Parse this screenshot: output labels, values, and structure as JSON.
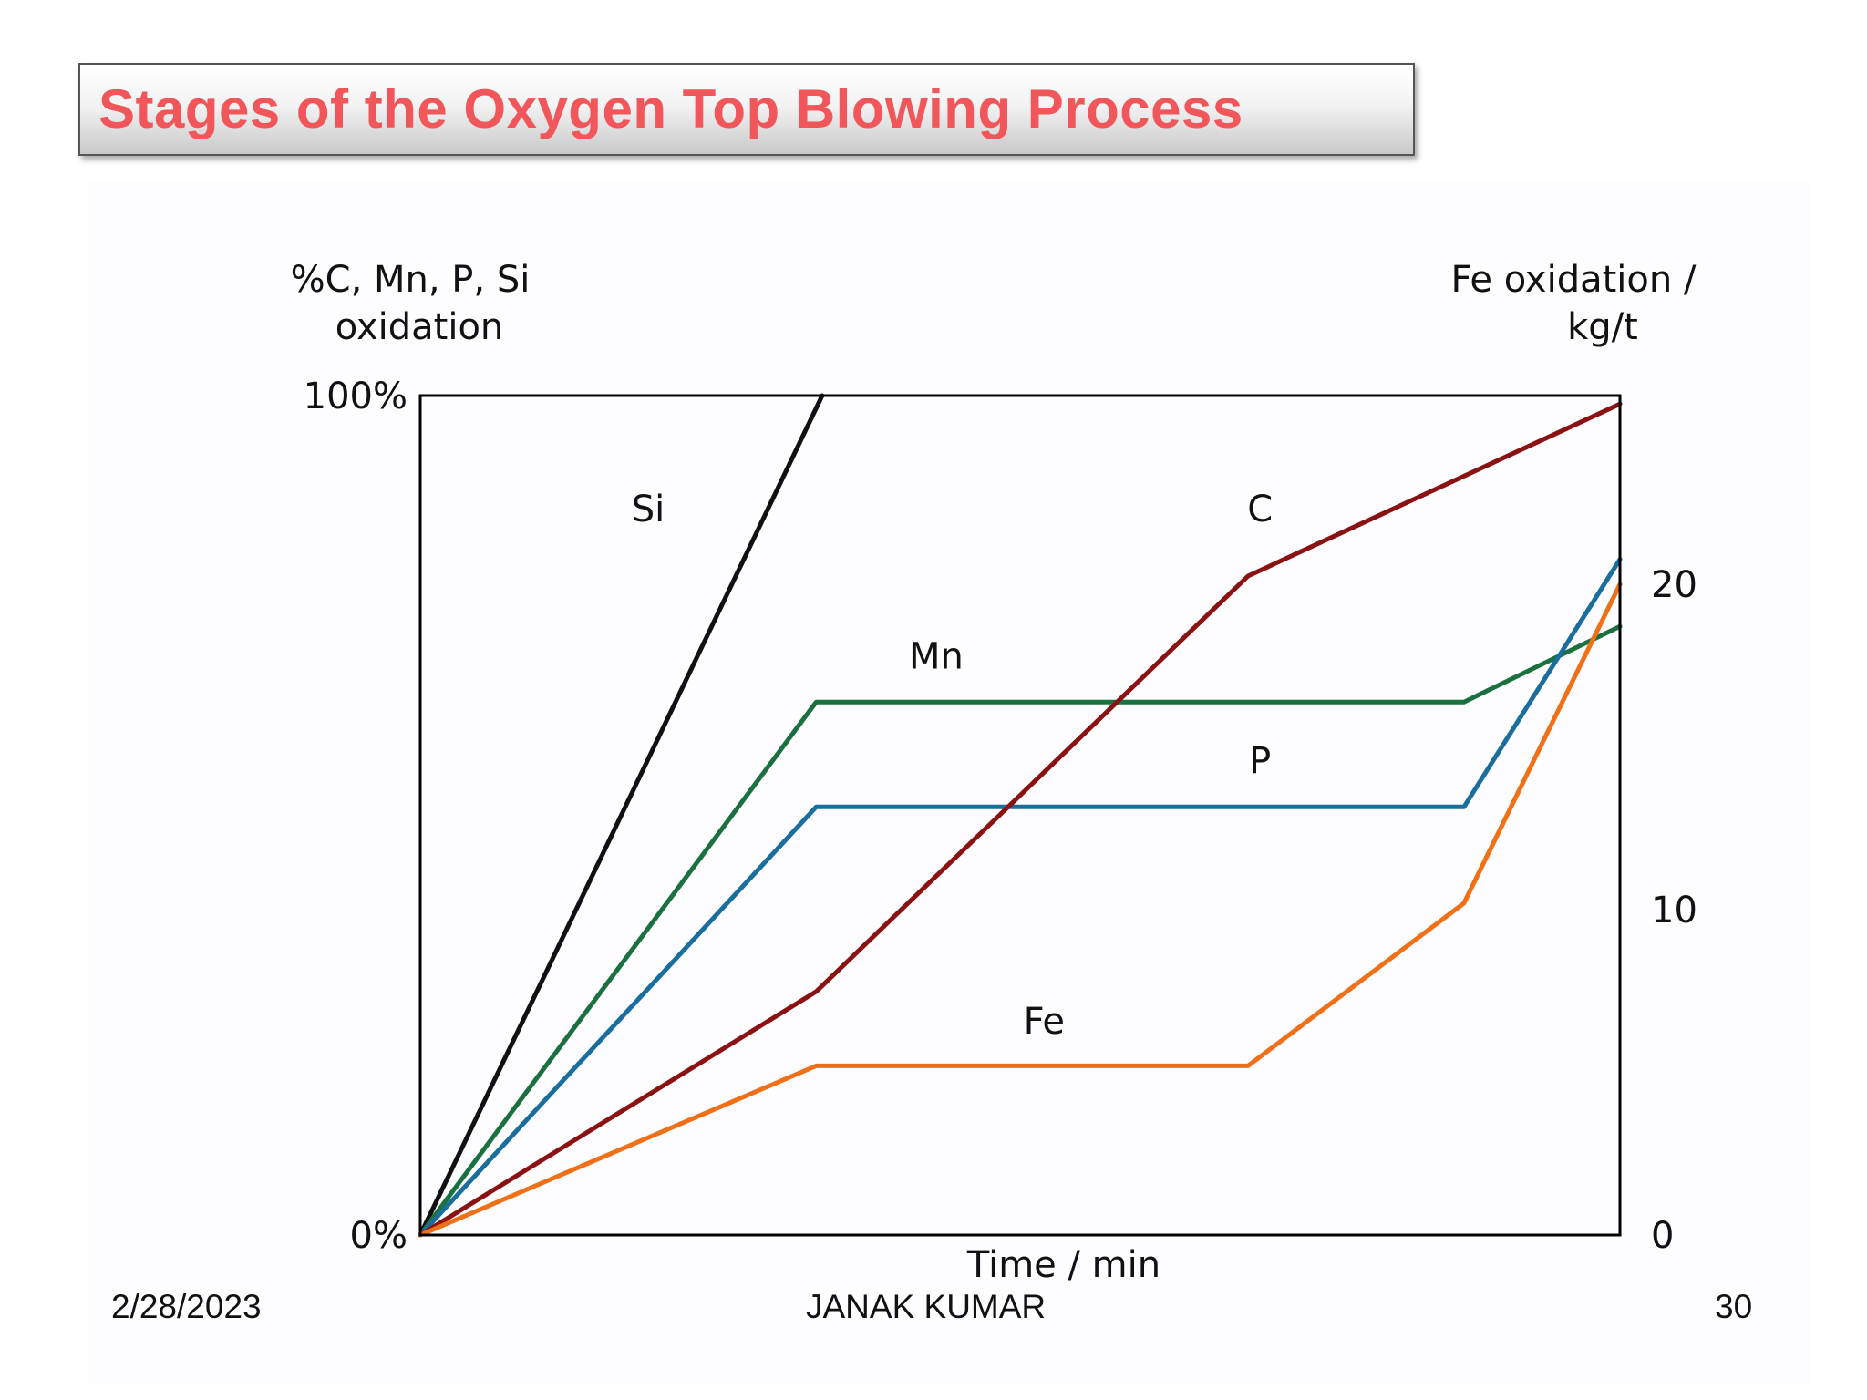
{
  "slide": {
    "title": "Stages of the Oxygen Top Blowing Process",
    "footer": {
      "date": "2/28/2023",
      "author": "JANAK KUMAR",
      "page": "30"
    }
  },
  "colors": {
    "title": "#f0565a",
    "Si": "#111111",
    "C": "#8b1212",
    "Mn": "#1b7040",
    "P": "#1a6e9e",
    "Fe": "#f07018"
  },
  "chart_data": {
    "type": "line",
    "xlabel": "Time / min",
    "ylabel_left": [
      "%C, Mn, P, Si",
      "oxidation"
    ],
    "ylabel_right": [
      "Fe oxidation /",
      "kg/t"
    ],
    "left_ticks": [
      {
        "value": 0,
        "label": "0%"
      },
      {
        "value": 100,
        "label": "100%"
      }
    ],
    "right_ticks": [
      {
        "value": 0,
        "label": "0"
      },
      {
        "value": 10,
        "label": "10"
      },
      {
        "value": 20,
        "label": "20"
      }
    ],
    "xlim": [
      0,
      100
    ],
    "ylim_left": [
      0,
      100
    ],
    "ylim_right": [
      0,
      25.8
    ],
    "grid": false,
    "series": [
      {
        "name": "Si",
        "axis": "left",
        "label_at": [
          19,
          85
        ],
        "x": [
          0,
          33.5
        ],
        "y": [
          0,
          100
        ]
      },
      {
        "name": "Mn",
        "axis": "left",
        "label_at": [
          43,
          67.5
        ],
        "x": [
          0,
          33,
          51,
          87,
          100
        ],
        "y": [
          0,
          63.5,
          63.5,
          63.5,
          72.5
        ]
      },
      {
        "name": "P",
        "axis": "left",
        "label_at": [
          70,
          55
        ],
        "x": [
          0,
          33,
          51,
          87,
          100
        ],
        "y": [
          0,
          51,
          51,
          51,
          80.5
        ]
      },
      {
        "name": "C",
        "axis": "left",
        "label_at": [
          70,
          85
        ],
        "x": [
          0,
          33,
          69,
          100
        ],
        "y": [
          0,
          29,
          78.5,
          99
        ]
      },
      {
        "name": "Fe",
        "axis": "right",
        "label_at": [
          52,
          24
        ],
        "x": [
          0,
          33,
          69,
          87,
          100
        ],
        "y": [
          0,
          5.2,
          5.2,
          10.2,
          20
        ]
      }
    ]
  }
}
